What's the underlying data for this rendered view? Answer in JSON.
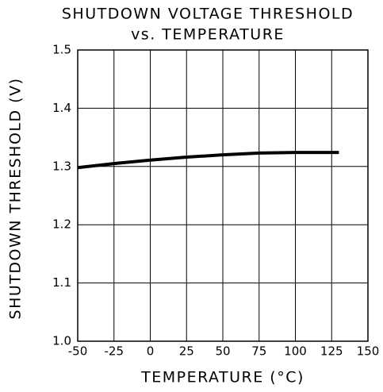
{
  "chart_data": {
    "type": "line",
    "title": "SHUTDOWN VOLTAGE THRESHOLD",
    "subtitle": "vs. TEMPERATURE",
    "x_label": "TEMPERATURE (°C)",
    "y_label": "SHUTDOWN THRESHOLD (V)",
    "x": [
      -50,
      -25,
      0,
      25,
      50,
      75,
      100,
      130
    ],
    "series": [
      {
        "color": "#000000",
        "values": [
          1.298,
          1.305,
          1.311,
          1.316,
          1.32,
          1.323,
          1.324,
          1.324
        ]
      }
    ],
    "xlim": [
      -50,
      150
    ],
    "xticks": [
      -50,
      -25,
      0,
      25,
      50,
      75,
      100,
      125,
      150
    ],
    "ylim": [
      1.0,
      1.5
    ],
    "yticks": [
      {
        "value": 1.0,
        "label": "1.0"
      },
      1.1,
      1.2,
      1.3,
      1.4,
      1.5
    ],
    "grid": true
  }
}
